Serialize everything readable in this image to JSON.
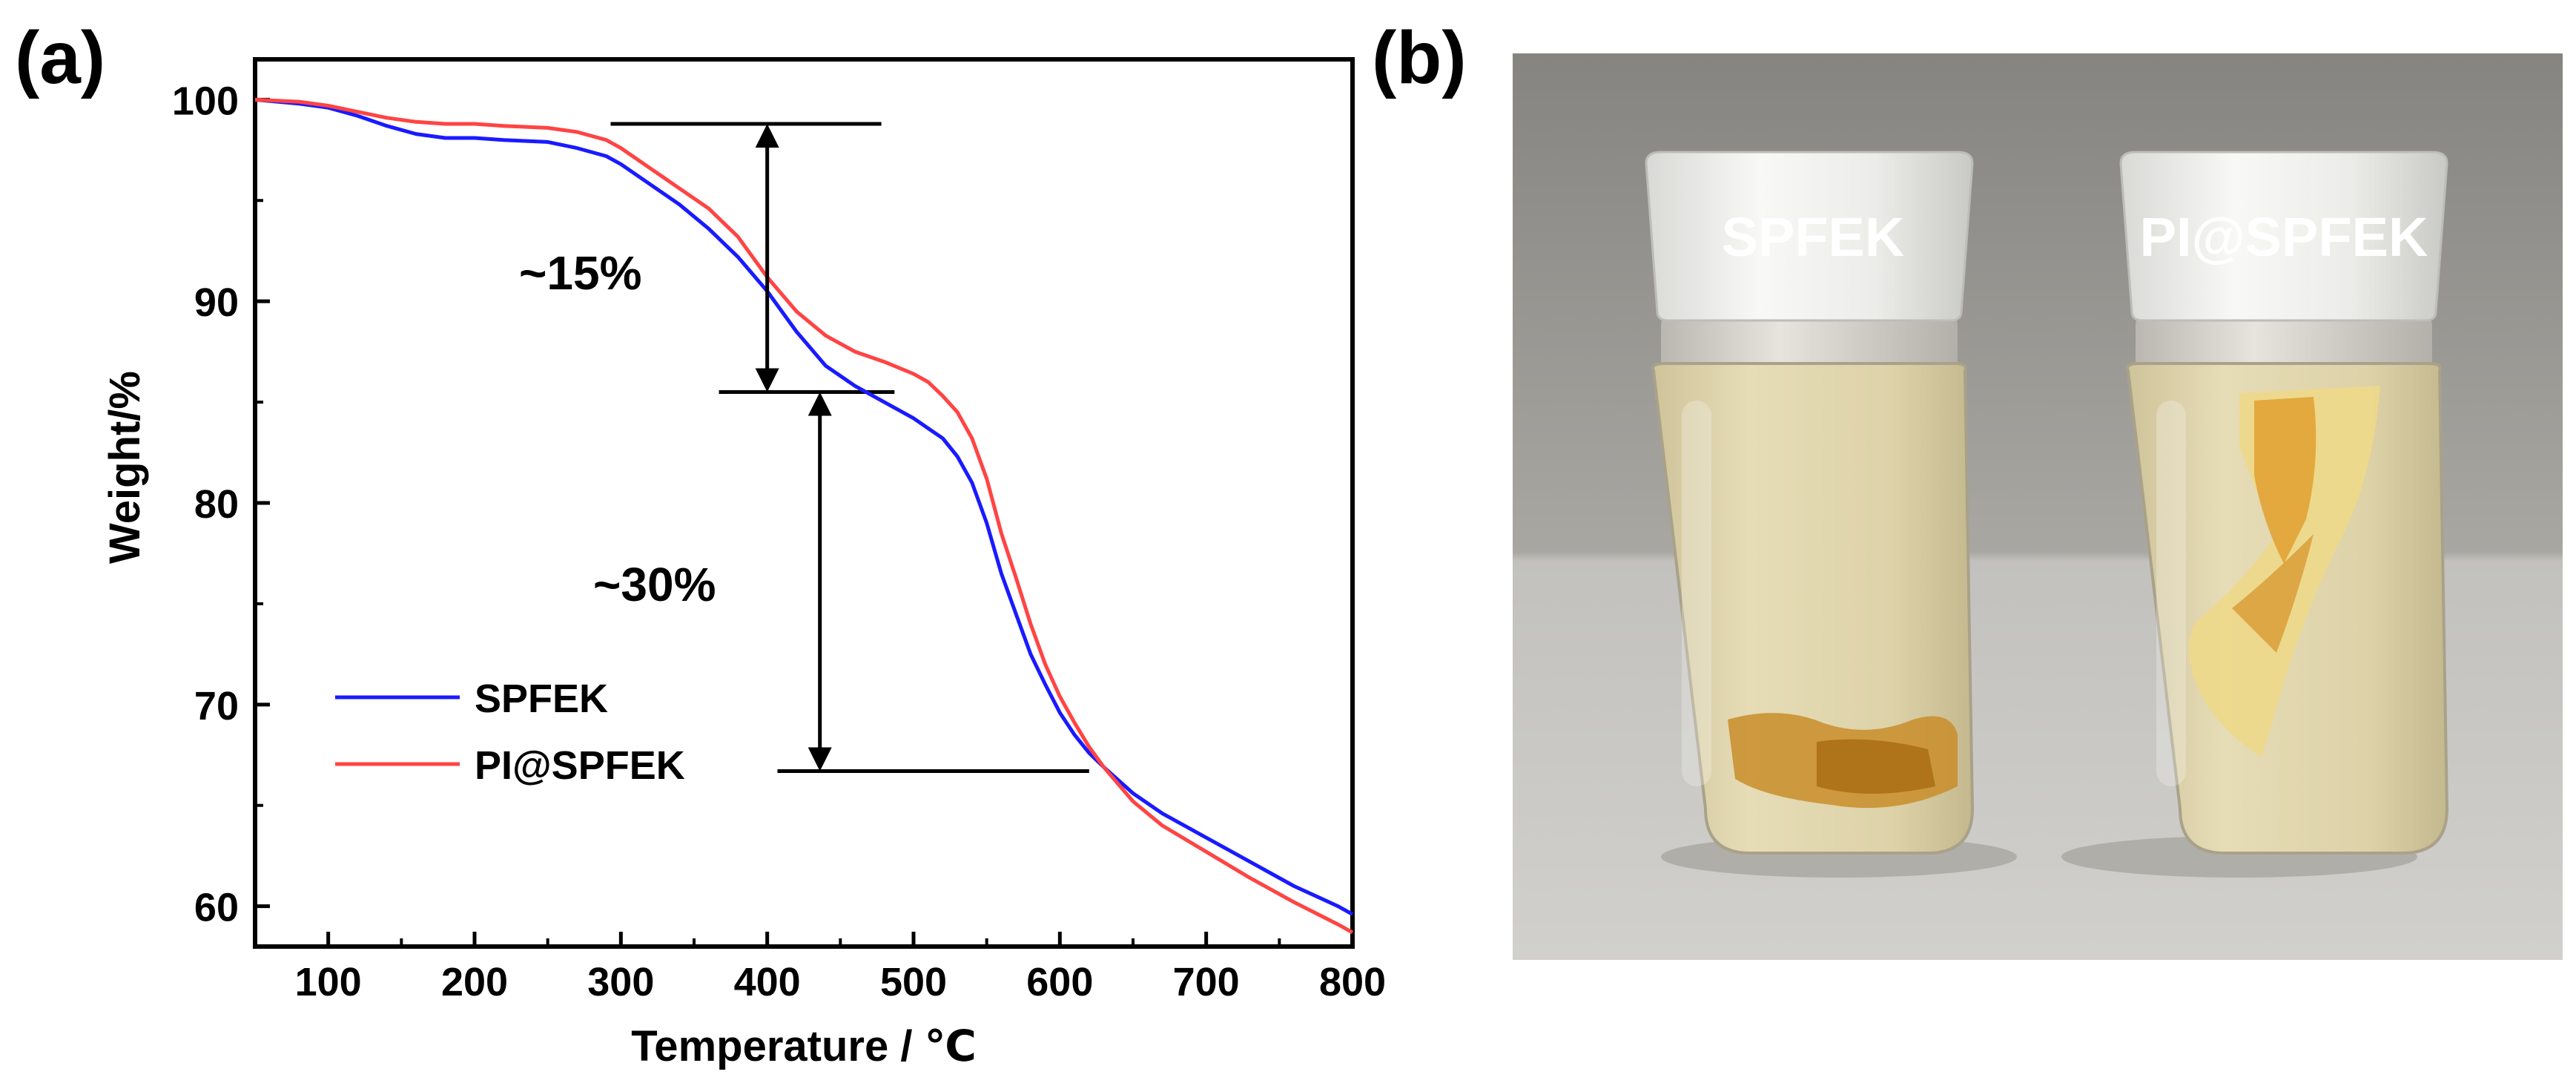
{
  "panels": {
    "a": {
      "label": "(a)"
    },
    "b": {
      "label": "(b)"
    }
  },
  "chart_data": {
    "type": "line",
    "title": "",
    "xlabel": "Temperature / ℃",
    "ylabel": "Weight/%",
    "xlim": [
      50,
      800
    ],
    "ylim": [
      58,
      102
    ],
    "xticks": [
      100,
      200,
      300,
      400,
      500,
      600,
      700,
      800
    ],
    "yticks": [
      60,
      70,
      80,
      90,
      100
    ],
    "legend_position": "bottom-left",
    "series": [
      {
        "name": "SPFEK",
        "color": "#1a1aff",
        "x": [
          50,
          80,
          100,
          120,
          140,
          160,
          180,
          200,
          220,
          250,
          270,
          290,
          300,
          320,
          340,
          360,
          380,
          400,
          420,
          440,
          460,
          480,
          500,
          510,
          520,
          530,
          540,
          550,
          560,
          570,
          580,
          590,
          600,
          610,
          620,
          630,
          650,
          670,
          700,
          730,
          760,
          790,
          800
        ],
        "values": [
          100,
          99.8,
          99.6,
          99.2,
          98.7,
          98.3,
          98.1,
          98.1,
          98.0,
          97.9,
          97.6,
          97.2,
          96.8,
          95.8,
          94.8,
          93.6,
          92.2,
          90.5,
          88.5,
          86.8,
          85.8,
          85.0,
          84.2,
          83.7,
          83.2,
          82.3,
          81.0,
          79.0,
          76.5,
          74.5,
          72.5,
          71.0,
          69.6,
          68.5,
          67.6,
          66.9,
          65.6,
          64.6,
          63.4,
          62.2,
          61.0,
          60.0,
          59.6
        ]
      },
      {
        "name": "PI@SPFEK",
        "color": "#ff4444",
        "x": [
          50,
          80,
          100,
          120,
          140,
          160,
          180,
          200,
          220,
          250,
          270,
          290,
          300,
          320,
          340,
          360,
          380,
          400,
          420,
          440,
          460,
          480,
          500,
          510,
          520,
          530,
          540,
          550,
          560,
          570,
          580,
          590,
          600,
          610,
          620,
          630,
          650,
          670,
          700,
          730,
          760,
          790,
          800
        ],
        "values": [
          100,
          99.9,
          99.7,
          99.4,
          99.1,
          98.9,
          98.8,
          98.8,
          98.7,
          98.6,
          98.4,
          98.0,
          97.6,
          96.6,
          95.6,
          94.6,
          93.2,
          91.2,
          89.5,
          88.3,
          87.5,
          87.0,
          86.4,
          86.0,
          85.3,
          84.5,
          83.2,
          81.2,
          78.5,
          76.3,
          74.0,
          72.0,
          70.4,
          69.1,
          67.9,
          66.9,
          65.2,
          64.0,
          62.7,
          61.4,
          60.2,
          59.1,
          58.7
        ]
      }
    ],
    "annotations": [
      {
        "text": "~15%",
        "x_data": 400,
        "y_top": 98.8,
        "y_bottom": 85.5
      },
      {
        "text": "~30%",
        "x_data": 436,
        "y_top": 85.5,
        "y_bottom": 66.7
      }
    ],
    "reference_lines": [
      {
        "y": 98.8,
        "x_from": 293,
        "x_to": 478
      },
      {
        "y": 85.5,
        "x_from": 367,
        "x_to": 487
      },
      {
        "y": 66.7,
        "x_from": 407,
        "x_to": 620
      }
    ]
  },
  "photo": {
    "vials": [
      {
        "label": "SPFEK"
      },
      {
        "label": "PI@SPFEK"
      }
    ]
  }
}
